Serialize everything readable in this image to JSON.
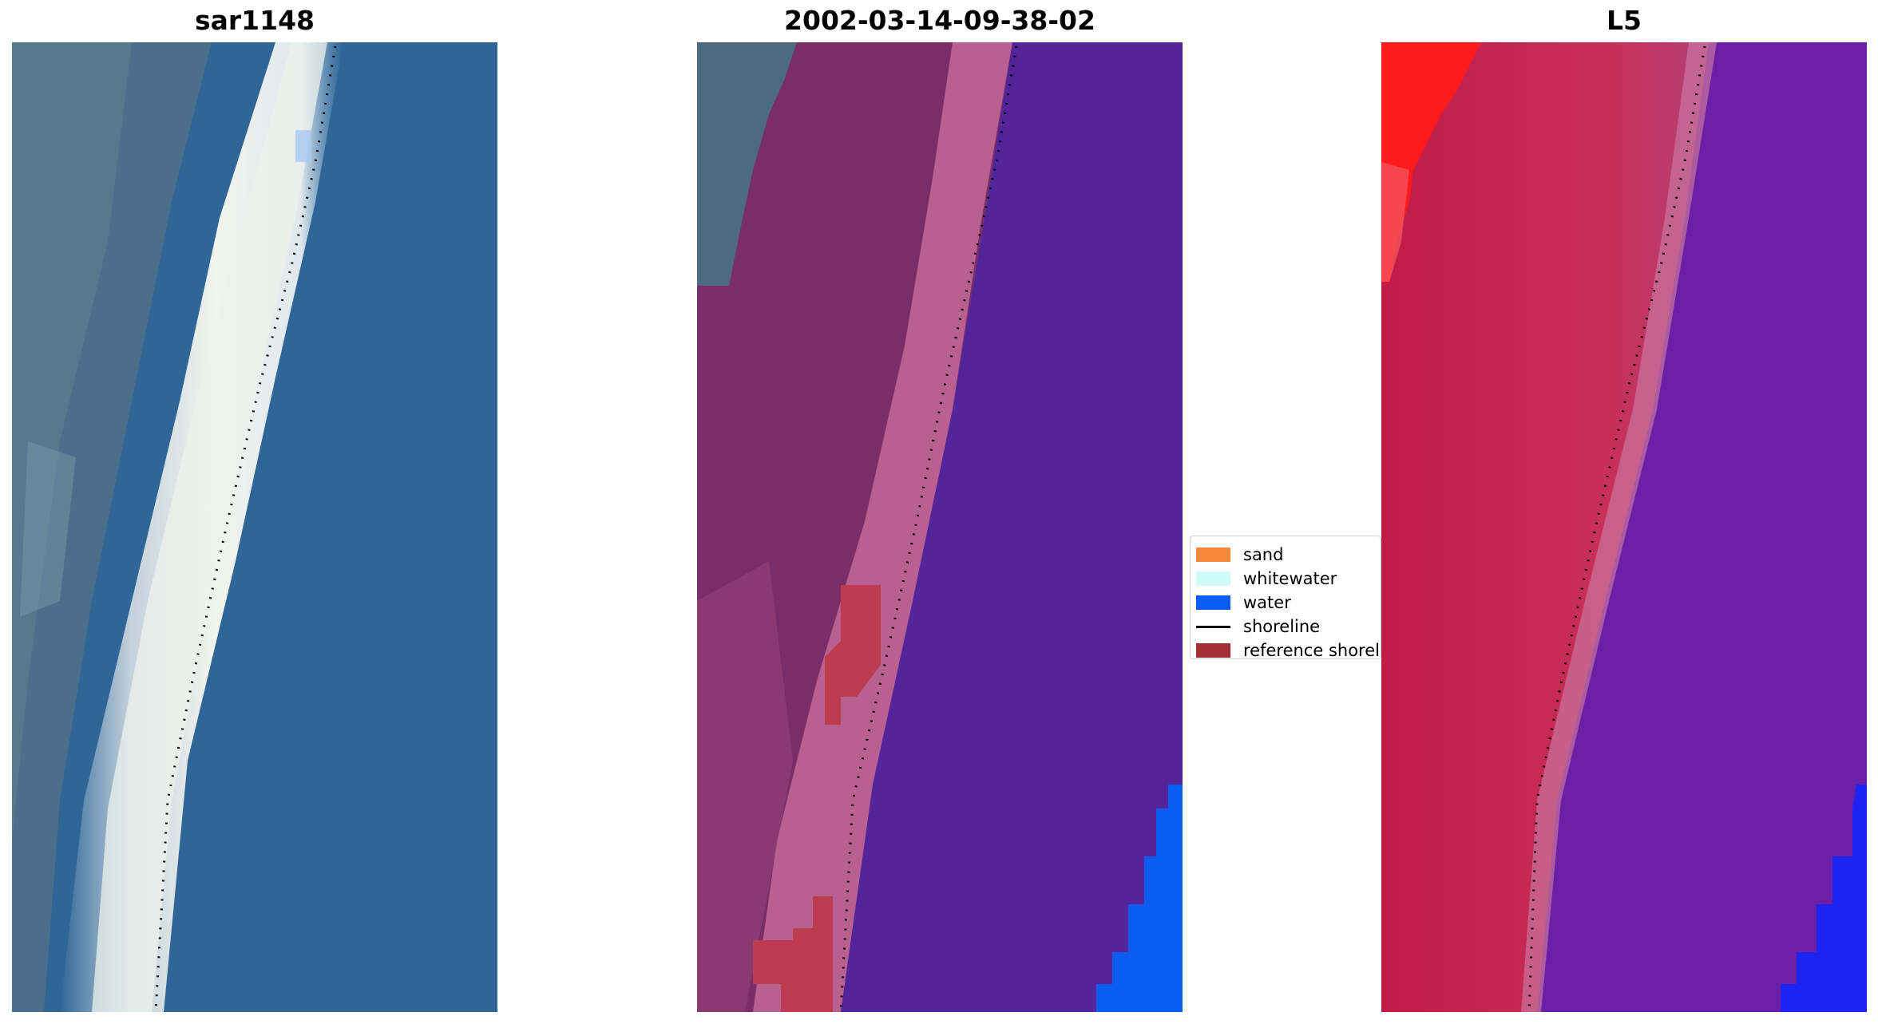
{
  "titles": {
    "left": "sar1148",
    "middle": "2002-03-14-09-38-02",
    "right": "L5"
  },
  "legend": {
    "items": [
      {
        "label": "sand",
        "color": "#f5883a",
        "kind": "patch"
      },
      {
        "label": "whitewater",
        "color": "#cffbfb",
        "kind": "patch"
      },
      {
        "label": "water",
        "color": "#0b5cf5",
        "kind": "patch"
      },
      {
        "label": "shoreline",
        "color": "#000000",
        "kind": "line"
      },
      {
        "label": "reference shoreline",
        "color": "#a12e33",
        "kind": "patch"
      }
    ]
  }
}
